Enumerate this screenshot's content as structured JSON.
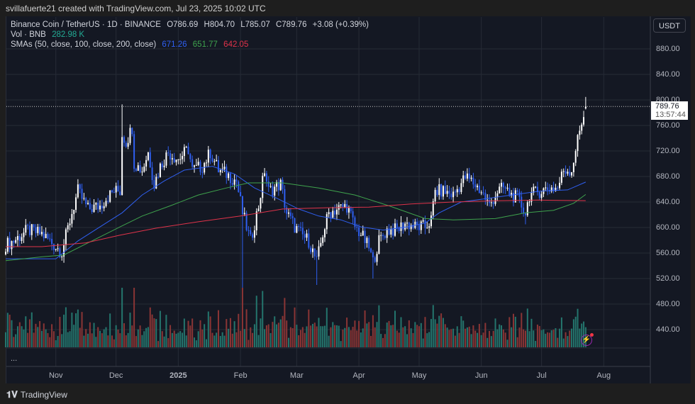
{
  "header": {
    "attribution": "svillafuerte21 created with TradingView.com, Jul 23, 2025 10:02 UTC"
  },
  "legend": {
    "symbol": "Binance Coin / TetherUS · 1D · BINANCE",
    "open": "O786.69",
    "high": "H804.70",
    "low": "L785.07",
    "close": "C789.76",
    "change": "+3.08 (+0.39%)",
    "vol_label": "Vol · BNB",
    "vol_value": "282.98 K",
    "sma_label": "SMAs (50, close, 100, close, 200, close)",
    "sma50": "671.26",
    "sma100": "651.77",
    "sma200": "642.05",
    "more": "..."
  },
  "currency_button": "USDT",
  "current_price": {
    "price": "789.76",
    "countdown": "13:57:44"
  },
  "footer": {
    "brand": "TradingView"
  },
  "colors": {
    "up": "#ffffff",
    "down": "#2f5ff0",
    "vol_up": "#24756d",
    "vol_down": "#8a3535",
    "sma50": "#2f5ff0",
    "sma100": "#3fa34d",
    "sma200": "#e0334a"
  },
  "chart_data": {
    "type": "candlestick",
    "title": "Binance Coin / TetherUS · 1D · BINANCE",
    "start_date": "2024-10-07",
    "x_unit": "days since start_date",
    "price_ticks": [
      "880.00",
      "840.00",
      "800.00",
      "760.00",
      "720.00",
      "680.00",
      "640.00",
      "600.00",
      "560.00",
      "520.00",
      "480.00",
      "440.00"
    ],
    "tick_values": [
      880,
      840,
      800,
      760,
      720,
      680,
      640,
      600,
      560,
      520,
      480,
      440
    ],
    "time_ticks": [
      {
        "label": "Nov",
        "day": 25
      },
      {
        "label": "Dec",
        "day": 55
      },
      {
        "label": "2025",
        "day": 86
      },
      {
        "label": "Feb",
        "day": 117
      },
      {
        "label": "Mar",
        "day": 145
      },
      {
        "label": "Apr",
        "day": 176
      },
      {
        "label": "May",
        "day": 206
      },
      {
        "label": "Jun",
        "day": 237
      },
      {
        "label": "Jul",
        "day": 267
      },
      {
        "label": "Aug",
        "day": 298
      }
    ],
    "ylim": [
      420,
      900
    ],
    "close_keypoints": [
      [
        0,
        573
      ],
      [
        4,
        579
      ],
      [
        11,
        596
      ],
      [
        18,
        590
      ],
      [
        24,
        573
      ],
      [
        28,
        562
      ],
      [
        33,
        623
      ],
      [
        36,
        657
      ],
      [
        41,
        629
      ],
      [
        47,
        634
      ],
      [
        50,
        646
      ],
      [
        54,
        657
      ],
      [
        57,
        657
      ],
      [
        58,
        746
      ],
      [
        60,
        734
      ],
      [
        63,
        757
      ],
      [
        64,
        701
      ],
      [
        68,
        690
      ],
      [
        71,
        718
      ],
      [
        74,
        668
      ],
      [
        77,
        696
      ],
      [
        81,
        718
      ],
      [
        86,
        707
      ],
      [
        91,
        723
      ],
      [
        93,
        690
      ],
      [
        98,
        696
      ],
      [
        102,
        718
      ],
      [
        106,
        690
      ],
      [
        110,
        684
      ],
      [
        115,
        673
      ],
      [
        118,
        623
      ],
      [
        122,
        579
      ],
      [
        126,
        634
      ],
      [
        129,
        690
      ],
      [
        131,
        657
      ],
      [
        137,
        668
      ],
      [
        140,
        623
      ],
      [
        144,
        601
      ],
      [
        147,
        590
      ],
      [
        151,
        579
      ],
      [
        155,
        546
      ],
      [
        158,
        590
      ],
      [
        161,
        623
      ],
      [
        165,
        629
      ],
      [
        170,
        634
      ],
      [
        174,
        601
      ],
      [
        177,
        590
      ],
      [
        181,
        568
      ],
      [
        183,
        546
      ],
      [
        186,
        579
      ],
      [
        190,
        596
      ],
      [
        195,
        596
      ],
      [
        199,
        607
      ],
      [
        204,
        601
      ],
      [
        209,
        601
      ],
      [
        212,
        612
      ],
      [
        214,
        657
      ],
      [
        218,
        657
      ],
      [
        223,
        651
      ],
      [
        229,
        679
      ],
      [
        232,
        673
      ],
      [
        237,
        657
      ],
      [
        241,
        634
      ],
      [
        245,
        657
      ],
      [
        248,
        662
      ],
      [
        252,
        651
      ],
      [
        255,
        646
      ],
      [
        259,
        623
      ],
      [
        261,
        651
      ],
      [
        266,
        657
      ],
      [
        271,
        662
      ],
      [
        275,
        662
      ],
      [
        278,
        690
      ],
      [
        282,
        690
      ],
      [
        284,
        723
      ],
      [
        286,
        751
      ],
      [
        288,
        779
      ]
    ],
    "wick_extremes": [
      [
        58,
        "high",
        793
      ],
      [
        118,
        "low",
        500
      ],
      [
        155,
        "low",
        510
      ],
      [
        183,
        "low",
        520
      ],
      [
        259,
        "low",
        605
      ]
    ],
    "last_candle": {
      "day": 289,
      "open": 786.69,
      "high": 804.7,
      "low": 785.07,
      "close": 789.76
    },
    "series": [
      {
        "name": "SMA 50",
        "last": 671.26,
        "points": [
          [
            0,
            551
          ],
          [
            25,
            551
          ],
          [
            36,
            579
          ],
          [
            50,
            607
          ],
          [
            58,
            623
          ],
          [
            68,
            651
          ],
          [
            79,
            673
          ],
          [
            89,
            690
          ],
          [
            103,
            696
          ],
          [
            114,
            684
          ],
          [
            124,
            662
          ],
          [
            135,
            646
          ],
          [
            146,
            629
          ],
          [
            156,
            618
          ],
          [
            167,
            612
          ],
          [
            177,
            601
          ],
          [
            188,
            596
          ],
          [
            200,
            601
          ],
          [
            209,
            607
          ],
          [
            216,
            623
          ],
          [
            227,
            640
          ],
          [
            241,
            646
          ],
          [
            252,
            651
          ],
          [
            266,
            657
          ],
          [
            280,
            659
          ],
          [
            289,
            671.26
          ]
        ]
      },
      {
        "name": "SMA 100",
        "last": 651.77,
        "points": [
          [
            0,
            548
          ],
          [
            18,
            554
          ],
          [
            29,
            557
          ],
          [
            43,
            579
          ],
          [
            57,
            601
          ],
          [
            68,
            618
          ],
          [
            82,
            634
          ],
          [
            96,
            651
          ],
          [
            110,
            662
          ],
          [
            121,
            670
          ],
          [
            138,
            670
          ],
          [
            156,
            662
          ],
          [
            174,
            651
          ],
          [
            191,
            634
          ],
          [
            209,
            614
          ],
          [
            223,
            612
          ],
          [
            244,
            614
          ],
          [
            259,
            623
          ],
          [
            273,
            627
          ],
          [
            283,
            638
          ],
          [
            289,
            651.77
          ]
        ]
      },
      {
        "name": "SMA 200",
        "last": 642.05,
        "points": [
          [
            0,
            570
          ],
          [
            18,
            570
          ],
          [
            40,
            576
          ],
          [
            57,
            588
          ],
          [
            75,
            599
          ],
          [
            96,
            609
          ],
          [
            117,
            618
          ],
          [
            138,
            629
          ],
          [
            160,
            631
          ],
          [
            181,
            632
          ],
          [
            202,
            637
          ],
          [
            223,
            640
          ],
          [
            244,
            642
          ],
          [
            266,
            643
          ],
          [
            289,
            642.05
          ]
        ]
      }
    ]
  }
}
